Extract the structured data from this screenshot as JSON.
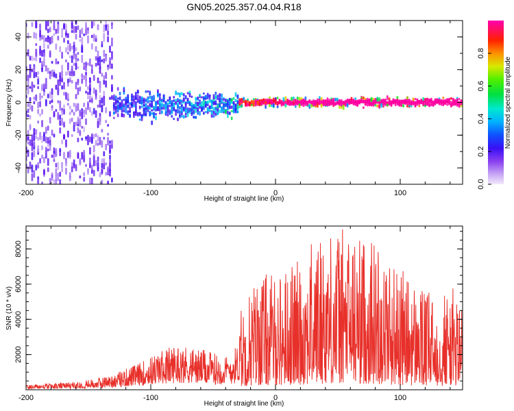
{
  "figure": {
    "title": "GN05.2025.357.04.04.R18"
  },
  "chart_data": [
    {
      "type": "heatmap",
      "title": "GN05.2025.357.04.04.R18",
      "xlabel": "Height of straight line (km)",
      "ylabel": "Frequency (Hz)",
      "xlim": [
        -200,
        150
      ],
      "ylim": [
        -50,
        50
      ],
      "xticks": [
        -200,
        -100,
        0,
        100
      ],
      "xtick_labels": [
        "-200",
        "-100",
        "0",
        "100"
      ],
      "yticks": [
        -40,
        -20,
        0,
        20,
        40
      ],
      "ytick_labels": [
        "-40",
        "-20",
        "0",
        "20",
        "40"
      ],
      "colorbar": {
        "label": "Normalized spectral amplitude",
        "range": [
          0,
          1
        ],
        "ticks": [
          0.0,
          0.2,
          0.4,
          0.6,
          0.8
        ],
        "tick_labels": [
          "0.0",
          "0.2",
          "0.4",
          "0.6",
          "0.8"
        ],
        "colormap": [
          "#e8d8f8",
          "#a070f0",
          "#5a10f0",
          "#2020ff",
          "#00a0ff",
          "#00e8e0",
          "#00e030",
          "#60f000",
          "#e0e000",
          "#ff8000",
          "#ff1000",
          "#ff00a0"
        ]
      },
      "features": [
        {
          "x_range": [
            -200,
            -130
          ],
          "band_hz": [
            -50,
            50
          ],
          "description_level": 0.25
        },
        {
          "x_range": [
            -130,
            -30
          ],
          "band_hz": [
            -15,
            10
          ],
          "description_level": 0.35
        },
        {
          "x_range": [
            -30,
            150
          ],
          "band_hz": [
            -3,
            3
          ],
          "description_level": 0.75
        }
      ]
    },
    {
      "type": "line",
      "xlabel": "Height of straight line (km)",
      "ylabel": "SNR (10 * v/v)",
      "xlim": [
        -200,
        150
      ],
      "ylim": [
        0,
        9300
      ],
      "xticks": [
        -200,
        -100,
        0,
        100
      ],
      "xtick_labels": [
        "-200",
        "-100",
        "0",
        "100"
      ],
      "yticks": [
        2000,
        4000,
        6000,
        8000
      ],
      "ytick_labels": [
        "2000",
        "4000",
        "6000",
        "8000"
      ],
      "series": [
        {
          "name": "SNR",
          "color": "#e8302a",
          "envelope_x": [
            -200,
            -180,
            -160,
            -140,
            -130,
            -120,
            -110,
            -100,
            -90,
            -80,
            -70,
            -60,
            -50,
            -40,
            -30,
            -28,
            -20,
            -10,
            0,
            10,
            20,
            30,
            40,
            50,
            60,
            70,
            80,
            90,
            100,
            110,
            120,
            130,
            140,
            150
          ],
          "envelope_y": [
            300,
            350,
            450,
            700,
            900,
            1200,
            1500,
            1900,
            2300,
            2600,
            2500,
            2300,
            2100,
            1900,
            2600,
            4500,
            5800,
            6500,
            6300,
            6800,
            7200,
            8200,
            8800,
            9000,
            8700,
            8500,
            8300,
            7400,
            6700,
            6000,
            5400,
            5200,
            5700,
            5000
          ]
        }
      ]
    }
  ]
}
